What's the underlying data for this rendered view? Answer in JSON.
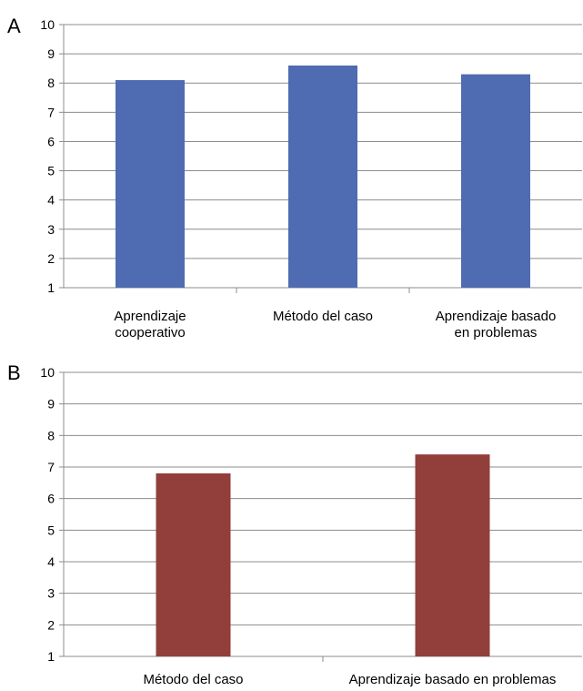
{
  "chart_data": [
    {
      "type": "bar",
      "panel_label": "A",
      "categories": [
        [
          "Aprendizaje",
          "cooperativo"
        ],
        [
          "Método del caso"
        ],
        [
          "Aprendizaje basado",
          "en problemas"
        ]
      ],
      "values": [
        8.1,
        8.6,
        8.3
      ],
      "ylim": [
        1,
        10
      ],
      "yticks": [
        1,
        2,
        3,
        4,
        5,
        6,
        7,
        8,
        9,
        10
      ],
      "grid": true,
      "color": "#4F6BB1"
    },
    {
      "type": "bar",
      "panel_label": "B",
      "categories": [
        [
          "Método del caso"
        ],
        [
          "Aprendizaje basado en problemas"
        ]
      ],
      "values": [
        6.8,
        7.4
      ],
      "ylim": [
        1,
        10
      ],
      "yticks": [
        1,
        2,
        3,
        4,
        5,
        6,
        7,
        8,
        9,
        10
      ],
      "grid": true,
      "color": "#923F3B"
    }
  ]
}
